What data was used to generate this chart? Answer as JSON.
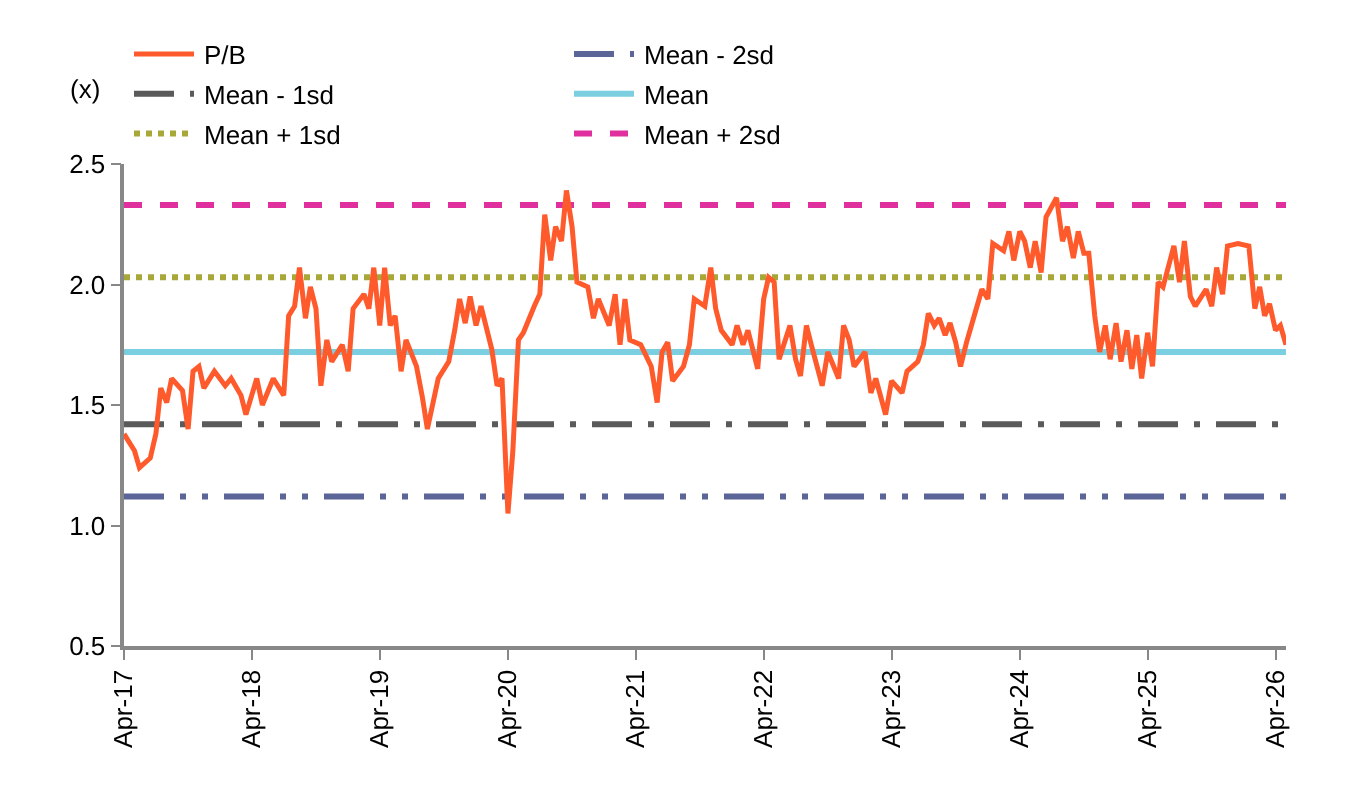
{
  "chart_data": {
    "type": "line",
    "ylabel": "(x)",
    "xlim": [
      "2017-04-01",
      "2026-05-01"
    ],
    "xticks": [
      {
        "value": "2017-04-01",
        "label": "Apr-17"
      },
      {
        "value": "2018-04-01",
        "label": "Apr-18"
      },
      {
        "value": "2019-04-01",
        "label": "Apr-19"
      },
      {
        "value": "2020-04-01",
        "label": "Apr-20"
      },
      {
        "value": "2021-04-01",
        "label": "Apr-21"
      },
      {
        "value": "2022-04-01",
        "label": "Apr-22"
      },
      {
        "value": "2023-04-01",
        "label": "Apr-23"
      },
      {
        "value": "2024-04-01",
        "label": "Apr-24"
      },
      {
        "value": "2025-04-01",
        "label": "Apr-25"
      },
      {
        "value": "2026-04-01",
        "label": "Apr-26"
      }
    ],
    "ylim": [
      0.5,
      2.5
    ],
    "yticks": [
      {
        "value": 0.5,
        "label": "0.5"
      },
      {
        "value": 1.0,
        "label": "1.0"
      },
      {
        "value": 1.5,
        "label": "1.5"
      },
      {
        "value": 2.0,
        "label": "2.0"
      },
      {
        "value": 2.5,
        "label": "2.5"
      }
    ],
    "legend": "top",
    "marker": "none",
    "series": [
      {
        "name": "P/B",
        "color": "#ff5a2c",
        "line_style": "solid",
        "x": [
          "2017-04-01",
          "2017-05-01",
          "2017-05-15",
          "2017-06-15",
          "2017-07-01",
          "2017-07-15",
          "2017-08-01",
          "2017-08-15",
          "2017-09-15",
          "2017-10-01",
          "2017-10-15",
          "2017-11-01",
          "2017-11-15",
          "2017-12-15",
          "2018-01-15",
          "2018-02-01",
          "2018-03-01",
          "2018-03-15",
          "2018-04-15",
          "2018-05-01",
          "2018-06-01",
          "2018-07-01",
          "2018-07-15",
          "2018-08-01",
          "2018-08-15",
          "2018-09-01",
          "2018-09-15",
          "2018-10-01",
          "2018-10-15",
          "2018-11-01",
          "2018-11-15",
          "2018-12-15",
          "2019-01-01",
          "2019-01-15",
          "2019-02-15",
          "2019-03-01",
          "2019-03-15",
          "2019-04-01",
          "2019-04-15",
          "2019-05-01",
          "2019-05-15",
          "2019-06-01",
          "2019-06-15",
          "2019-07-15",
          "2019-08-01",
          "2019-08-15",
          "2019-09-15",
          "2019-10-15",
          "2019-11-01",
          "2019-11-15",
          "2019-12-01",
          "2019-12-15",
          "2020-01-01",
          "2020-01-15",
          "2020-02-15",
          "2020-03-01",
          "2020-03-15",
          "2020-04-01",
          "2020-04-15",
          "2020-05-01",
          "2020-05-15",
          "2020-06-01",
          "2020-06-15",
          "2020-07-01",
          "2020-07-15",
          "2020-08-01",
          "2020-08-15",
          "2020-09-01",
          "2020-09-15",
          "2020-10-01",
          "2020-10-15",
          "2020-11-15",
          "2020-12-01",
          "2020-12-15",
          "2021-01-15",
          "2021-02-01",
          "2021-02-15",
          "2021-03-01",
          "2021-03-15",
          "2021-04-15",
          "2021-05-15",
          "2021-06-01",
          "2021-06-15",
          "2021-07-01",
          "2021-07-15",
          "2021-08-15",
          "2021-09-01",
          "2021-09-15",
          "2021-10-15",
          "2021-11-01",
          "2021-11-15",
          "2021-12-01",
          "2022-01-01",
          "2022-01-15",
          "2022-02-01",
          "2022-02-15",
          "2022-03-15",
          "2022-04-01",
          "2022-04-15",
          "2022-05-01",
          "2022-05-15",
          "2022-06-15",
          "2022-07-01",
          "2022-07-15",
          "2022-08-01",
          "2022-08-15",
          "2022-09-15",
          "2022-10-01",
          "2022-11-01",
          "2022-11-15",
          "2022-12-01",
          "2022-12-15",
          "2023-01-15",
          "2023-02-01",
          "2023-02-15",
          "2023-03-15",
          "2023-04-01",
          "2023-05-01",
          "2023-05-15",
          "2023-06-15",
          "2023-07-01",
          "2023-07-15",
          "2023-08-01",
          "2023-08-15",
          "2023-09-01",
          "2023-09-15",
          "2023-10-01",
          "2023-10-15",
          "2023-11-01",
          "2023-11-15",
          "2023-12-15",
          "2024-01-01",
          "2024-01-15",
          "2024-02-15",
          "2024-03-01",
          "2024-03-15",
          "2024-04-01",
          "2024-04-15",
          "2024-05-01",
          "2024-05-15",
          "2024-06-01",
          "2024-06-15",
          "2024-07-15",
          "2024-08-01",
          "2024-08-15",
          "2024-09-01",
          "2024-09-15",
          "2024-10-01",
          "2024-10-15",
          "2024-11-01",
          "2024-11-15",
          "2024-12-01",
          "2024-12-15",
          "2025-01-01",
          "2025-01-15",
          "2025-02-01",
          "2025-02-15",
          "2025-03-01",
          "2025-03-15",
          "2025-04-01",
          "2025-04-15",
          "2025-05-01",
          "2025-05-15",
          "2025-06-15",
          "2025-07-01",
          "2025-07-15",
          "2025-08-01",
          "2025-08-15",
          "2025-09-15",
          "2025-10-01",
          "2025-10-15",
          "2025-11-01",
          "2025-11-15",
          "2025-12-15",
          "2026-01-15",
          "2026-02-01",
          "2026-02-15",
          "2026-03-01",
          "2026-03-15",
          "2026-04-01",
          "2026-04-15",
          "2026-05-01"
        ],
        "values": [
          1.38,
          1.31,
          1.24,
          1.28,
          1.38,
          1.57,
          1.51,
          1.61,
          1.56,
          1.4,
          1.64,
          1.66,
          1.57,
          1.64,
          1.58,
          1.61,
          1.54,
          1.46,
          1.61,
          1.5,
          1.61,
          1.54,
          1.87,
          1.91,
          2.07,
          1.86,
          1.99,
          1.9,
          1.58,
          1.77,
          1.68,
          1.75,
          1.64,
          1.9,
          1.96,
          1.9,
          2.07,
          1.83,
          2.07,
          1.83,
          1.87,
          1.64,
          1.77,
          1.66,
          1.53,
          1.4,
          1.61,
          1.68,
          1.81,
          1.94,
          1.84,
          1.95,
          1.83,
          1.91,
          1.73,
          1.58,
          1.61,
          1.05,
          1.31,
          1.77,
          1.8,
          1.86,
          1.91,
          1.96,
          2.29,
          2.1,
          2.24,
          2.18,
          2.39,
          2.24,
          2.01,
          1.99,
          1.86,
          1.94,
          1.83,
          1.96,
          1.75,
          1.94,
          1.77,
          1.75,
          1.66,
          1.51,
          1.72,
          1.76,
          1.6,
          1.66,
          1.75,
          1.94,
          1.91,
          2.07,
          1.9,
          1.81,
          1.75,
          1.83,
          1.75,
          1.81,
          1.65,
          1.94,
          2.03,
          2.01,
          1.69,
          1.83,
          1.69,
          1.62,
          1.83,
          1.75,
          1.58,
          1.72,
          1.61,
          1.83,
          1.77,
          1.66,
          1.72,
          1.55,
          1.61,
          1.46,
          1.6,
          1.55,
          1.64,
          1.68,
          1.75,
          1.88,
          1.83,
          1.86,
          1.79,
          1.84,
          1.76,
          1.66,
          1.76,
          1.83,
          1.98,
          1.94,
          2.17,
          2.14,
          2.22,
          2.1,
          2.22,
          2.18,
          2.07,
          2.18,
          2.05,
          2.28,
          2.36,
          2.18,
          2.24,
          2.11,
          2.22,
          2.13,
          2.13,
          1.87,
          1.72,
          1.83,
          1.69,
          1.84,
          1.68,
          1.81,
          1.65,
          1.79,
          1.61,
          1.8,
          1.66,
          2.01,
          1.99,
          2.16,
          2.01,
          2.18,
          1.95,
          1.91,
          1.98,
          1.91,
          2.07,
          1.96,
          2.16,
          2.17,
          2.16,
          1.9,
          1.99,
          1.87,
          1.92,
          1.81,
          1.83,
          1.75
        ]
      },
      {
        "name": "Mean - 2sd",
        "color": "#5b6598",
        "line_style": "dashdotdot",
        "x": [
          "2017-04-01",
          "2026-05-01"
        ],
        "values": [
          1.12,
          1.12
        ]
      },
      {
        "name": "Mean - 1sd",
        "color": "#5a5a5a",
        "line_style": "dashdot",
        "x": [
          "2017-04-01",
          "2026-05-01"
        ],
        "values": [
          1.42,
          1.42
        ]
      },
      {
        "name": "Mean",
        "color": "#7ccfe0",
        "line_style": "solid",
        "x": [
          "2017-04-01",
          "2026-05-01"
        ],
        "values": [
          1.72,
          1.72
        ]
      },
      {
        "name": "Mean + 1sd",
        "color": "#a8a838",
        "line_style": "dotted",
        "x": [
          "2017-04-01",
          "2026-05-01"
        ],
        "values": [
          2.03,
          2.03
        ]
      },
      {
        "name": "Mean + 2sd",
        "color": "#e0309e",
        "line_style": "dashed",
        "x": [
          "2017-04-01",
          "2026-05-01"
        ],
        "values": [
          2.33,
          2.33
        ]
      }
    ]
  }
}
